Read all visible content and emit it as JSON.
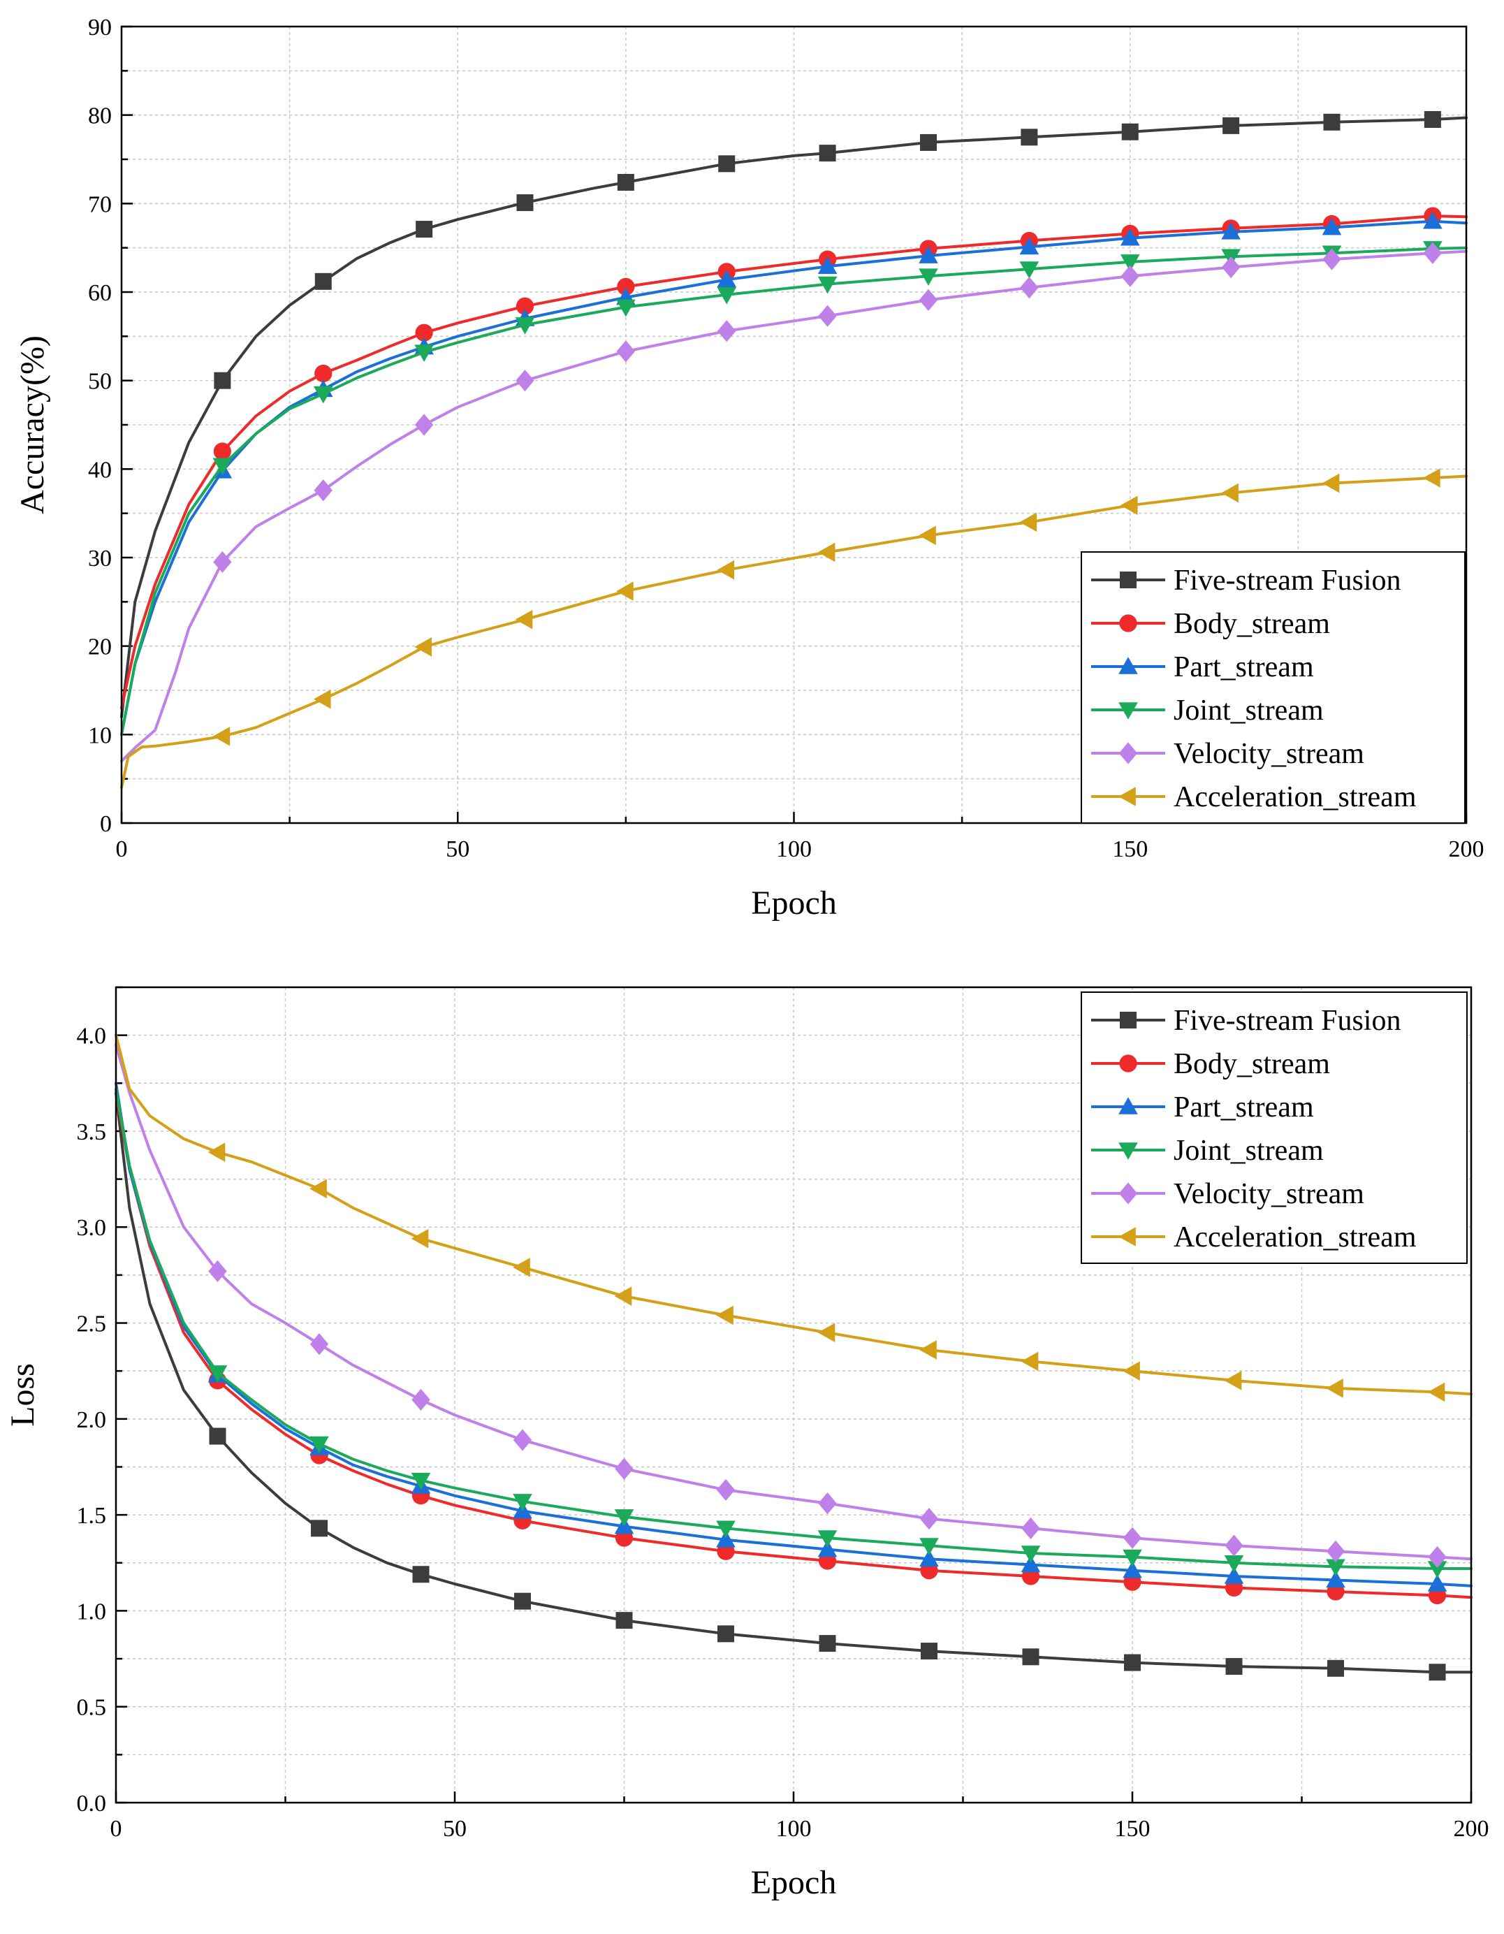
{
  "chart_data": [
    {
      "type": "line",
      "title": "",
      "xlabel": "Epoch",
      "ylabel": "Accuracy(%)",
      "xlim": [
        0,
        200
      ],
      "ylim": [
        0,
        90
      ],
      "xticks": [
        0,
        50,
        100,
        150,
        200
      ],
      "xtick_labels": [
        "0",
        "50",
        "100",
        "150",
        "200"
      ],
      "yticks": [
        0,
        10,
        20,
        30,
        40,
        50,
        60,
        70,
        80,
        90
      ],
      "ytick_labels": [
        "0",
        "10",
        "20",
        "30",
        "40",
        "50",
        "60",
        "70",
        "80",
        "90"
      ],
      "grid": true,
      "legend_position": "bottom-right",
      "series": [
        {
          "name": "Five-stream Fusion",
          "color": "#3c3c3c",
          "marker": "square",
          "x": [
            0,
            2,
            5,
            10,
            15,
            20,
            25,
            30,
            35,
            40,
            45,
            50,
            60,
            70,
            75,
            80,
            90,
            100,
            105,
            120,
            135,
            150,
            165,
            180,
            195,
            200
          ],
          "y": [
            12,
            25,
            33,
            43,
            50,
            55,
            58.5,
            61.2,
            63.8,
            65.6,
            67.1,
            68.2,
            70.1,
            71.7,
            72.4,
            73.1,
            74.5,
            75.4,
            75.7,
            76.9,
            77.5,
            78.1,
            78.8,
            79.2,
            79.5,
            79.7
          ]
        },
        {
          "name": "Body_stream",
          "color": "#ee2a2a",
          "marker": "circle",
          "x": [
            0,
            2,
            5,
            10,
            15,
            20,
            25,
            30,
            35,
            40,
            45,
            50,
            60,
            75,
            90,
            105,
            120,
            135,
            150,
            165,
            180,
            195,
            200
          ],
          "y": [
            13,
            20,
            27,
            36,
            42,
            46,
            48.8,
            50.8,
            52.3,
            53.9,
            55.4,
            56.5,
            58.4,
            60.6,
            62.3,
            63.7,
            64.9,
            65.8,
            66.6,
            67.2,
            67.7,
            68.6,
            68.5
          ]
        },
        {
          "name": "Part_stream",
          "color": "#1a6fd8",
          "marker": "triangle-up",
          "x": [
            0,
            2,
            5,
            10,
            15,
            20,
            25,
            30,
            35,
            40,
            45,
            50,
            60,
            75,
            90,
            105,
            120,
            135,
            150,
            165,
            180,
            195,
            200
          ],
          "y": [
            10,
            18,
            25,
            34,
            39.8,
            44,
            47,
            49,
            51,
            52.5,
            53.8,
            55,
            57,
            59.4,
            61.4,
            62.9,
            64.1,
            65.1,
            66.1,
            66.8,
            67.3,
            68,
            67.8
          ]
        },
        {
          "name": "Joint_stream",
          "color": "#1aaa5a",
          "marker": "triangle-down",
          "x": [
            0,
            2,
            5,
            10,
            15,
            20,
            25,
            30,
            35,
            40,
            45,
            50,
            60,
            75,
            90,
            105,
            120,
            135,
            150,
            165,
            180,
            195,
            200
          ],
          "y": [
            10,
            18,
            26,
            35,
            40.4,
            44,
            46.8,
            48.5,
            50.3,
            51.8,
            53.2,
            54.3,
            56.3,
            58.3,
            59.7,
            60.9,
            61.8,
            62.6,
            63.4,
            64,
            64.4,
            64.9,
            65
          ]
        },
        {
          "name": "Velocity_stream",
          "color": "#c080ea",
          "marker": "diamond",
          "x": [
            0,
            2,
            5,
            8,
            10,
            15,
            20,
            25,
            30,
            35,
            40,
            45,
            50,
            60,
            75,
            90,
            105,
            120,
            135,
            150,
            165,
            180,
            195,
            200
          ],
          "y": [
            7,
            8.5,
            10.5,
            17,
            22,
            29.5,
            33.5,
            35.6,
            37.6,
            40.3,
            42.8,
            45,
            47,
            50,
            53.3,
            55.6,
            57.3,
            59.1,
            60.5,
            61.8,
            62.8,
            63.7,
            64.4,
            64.6
          ]
        },
        {
          "name": "Acceleration_stream",
          "color": "#d4a017",
          "marker": "triangle-left",
          "x": [
            0,
            1,
            3,
            5,
            10,
            15,
            20,
            25,
            30,
            35,
            40,
            45,
            50,
            60,
            75,
            90,
            105,
            120,
            135,
            150,
            165,
            180,
            195,
            200
          ],
          "y": [
            4,
            7.5,
            8.6,
            8.7,
            9.2,
            9.8,
            10.8,
            12.4,
            14,
            15.8,
            17.8,
            19.9,
            21,
            23,
            26.2,
            28.6,
            30.6,
            32.5,
            34,
            35.9,
            37.3,
            38.4,
            39,
            39.2
          ]
        }
      ]
    },
    {
      "type": "line",
      "title": "",
      "xlabel": "Epoch",
      "ylabel": "Loss",
      "xlim": [
        0,
        200
      ],
      "ylim": [
        0,
        4.25
      ],
      "xticks": [
        0,
        50,
        100,
        150,
        200
      ],
      "xtick_labels": [
        "0",
        "50",
        "100",
        "150",
        "200"
      ],
      "yticks": [
        0,
        0.5,
        1,
        1.5,
        2,
        2.5,
        3,
        3.5,
        4
      ],
      "ytick_labels": [
        "0.0",
        "0.5",
        "1.0",
        "1.5",
        "2.0",
        "2.5",
        "3.0",
        "3.5",
        "4.0"
      ],
      "grid": true,
      "legend_position": "top-right",
      "series": [
        {
          "name": "Five-stream Fusion",
          "color": "#3c3c3c",
          "marker": "square",
          "x": [
            0,
            2,
            5,
            10,
            15,
            20,
            25,
            30,
            35,
            40,
            45,
            50,
            60,
            75,
            90,
            105,
            120,
            135,
            150,
            165,
            180,
            195,
            200
          ],
          "y": [
            3.7,
            3.1,
            2.6,
            2.15,
            1.91,
            1.72,
            1.56,
            1.43,
            1.33,
            1.25,
            1.19,
            1.14,
            1.05,
            0.95,
            0.88,
            0.83,
            0.79,
            0.76,
            0.73,
            0.71,
            0.7,
            0.68,
            0.68
          ]
        },
        {
          "name": "Body_stream",
          "color": "#ee2a2a",
          "marker": "circle",
          "x": [
            0,
            2,
            5,
            10,
            15,
            20,
            25,
            30,
            35,
            40,
            45,
            50,
            60,
            75,
            90,
            105,
            120,
            135,
            150,
            165,
            180,
            195,
            200
          ],
          "y": [
            3.7,
            3.3,
            2.9,
            2.45,
            2.2,
            2.05,
            1.92,
            1.81,
            1.73,
            1.66,
            1.6,
            1.55,
            1.47,
            1.38,
            1.31,
            1.26,
            1.21,
            1.18,
            1.15,
            1.12,
            1.1,
            1.08,
            1.07
          ]
        },
        {
          "name": "Part_stream",
          "color": "#1a6fd8",
          "marker": "triangle-up",
          "x": [
            0,
            2,
            5,
            10,
            15,
            20,
            25,
            30,
            35,
            40,
            45,
            50,
            60,
            75,
            90,
            105,
            120,
            135,
            150,
            165,
            180,
            195,
            200
          ],
          "y": [
            3.75,
            3.3,
            2.92,
            2.48,
            2.23,
            2.08,
            1.95,
            1.85,
            1.76,
            1.7,
            1.65,
            1.6,
            1.52,
            1.44,
            1.37,
            1.32,
            1.27,
            1.24,
            1.21,
            1.18,
            1.16,
            1.14,
            1.13
          ]
        },
        {
          "name": "Joint_stream",
          "color": "#1aaa5a",
          "marker": "triangle-down",
          "x": [
            0,
            2,
            5,
            10,
            15,
            20,
            25,
            30,
            35,
            40,
            45,
            50,
            60,
            75,
            90,
            105,
            120,
            135,
            150,
            165,
            180,
            195,
            200
          ],
          "y": [
            3.72,
            3.32,
            2.93,
            2.5,
            2.24,
            2.1,
            1.97,
            1.87,
            1.79,
            1.73,
            1.68,
            1.64,
            1.57,
            1.49,
            1.43,
            1.38,
            1.34,
            1.3,
            1.28,
            1.25,
            1.23,
            1.22,
            1.22
          ]
        },
        {
          "name": "Velocity_stream",
          "color": "#c080ea",
          "marker": "diamond",
          "x": [
            0,
            2,
            5,
            10,
            15,
            20,
            25,
            30,
            35,
            40,
            45,
            50,
            60,
            75,
            90,
            105,
            120,
            135,
            150,
            165,
            180,
            195,
            200
          ],
          "y": [
            3.95,
            3.7,
            3.4,
            3.0,
            2.77,
            2.6,
            2.5,
            2.39,
            2.28,
            2.19,
            2.1,
            2.02,
            1.89,
            1.74,
            1.63,
            1.56,
            1.48,
            1.43,
            1.38,
            1.34,
            1.31,
            1.28,
            1.27
          ]
        },
        {
          "name": "Acceleration_stream",
          "color": "#d4a017",
          "marker": "triangle-left",
          "x": [
            0,
            2,
            5,
            10,
            15,
            20,
            25,
            30,
            35,
            40,
            45,
            50,
            60,
            75,
            90,
            105,
            120,
            135,
            150,
            165,
            180,
            195,
            200
          ],
          "y": [
            4.0,
            3.72,
            3.58,
            3.46,
            3.39,
            3.34,
            3.27,
            3.2,
            3.1,
            3.02,
            2.94,
            2.89,
            2.79,
            2.64,
            2.54,
            2.45,
            2.36,
            2.3,
            2.25,
            2.2,
            2.16,
            2.14,
            2.13
          ]
        }
      ]
    }
  ]
}
